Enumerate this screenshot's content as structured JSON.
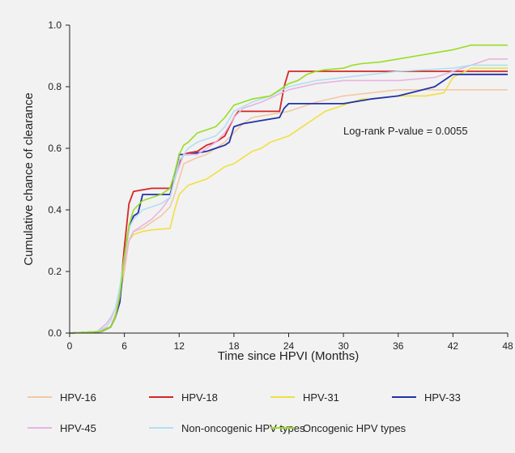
{
  "chart_data": {
    "type": "line",
    "title": "",
    "xlabel": "Time since HPVI (Months)",
    "ylabel": "Cumulative chance of clearance",
    "xlim": [
      0,
      48
    ],
    "ylim": [
      0,
      1.0
    ],
    "x_ticks": [
      "0",
      "6",
      "12",
      "18",
      "24",
      "30",
      "36",
      "42",
      "48"
    ],
    "y_ticks": [
      "0.0",
      "0.2",
      "0.4",
      "0.6",
      "0.8",
      "1.0"
    ],
    "grid": false,
    "legend_position": "bottom",
    "annotation": "Log-rank P-value = 0.0055",
    "series": [
      {
        "name": "HPV-16",
        "color": "#f2c8a2",
        "points": [
          [
            0,
            0
          ],
          [
            3,
            0.005
          ],
          [
            4.5,
            0.02
          ],
          [
            5,
            0.06
          ],
          [
            5.5,
            0.12
          ],
          [
            6,
            0.2
          ],
          [
            6.5,
            0.3
          ],
          [
            7,
            0.33
          ],
          [
            8,
            0.34
          ],
          [
            9,
            0.36
          ],
          [
            10,
            0.38
          ],
          [
            11,
            0.41
          ],
          [
            11.5,
            0.45
          ],
          [
            12,
            0.5
          ],
          [
            12.5,
            0.55
          ],
          [
            14,
            0.57
          ],
          [
            15,
            0.58
          ],
          [
            16,
            0.6
          ],
          [
            17,
            0.62
          ],
          [
            18,
            0.65
          ],
          [
            19,
            0.68
          ],
          [
            20,
            0.7
          ],
          [
            22,
            0.71
          ],
          [
            24,
            0.72
          ],
          [
            25,
            0.73
          ],
          [
            27,
            0.75
          ],
          [
            30,
            0.77
          ],
          [
            33,
            0.78
          ],
          [
            36,
            0.79
          ],
          [
            42,
            0.79
          ],
          [
            48,
            0.79
          ]
        ]
      },
      {
        "name": "HPV-18",
        "color": "#d62626",
        "points": [
          [
            0,
            0
          ],
          [
            3.5,
            0.005
          ],
          [
            4.5,
            0.02
          ],
          [
            5,
            0.05
          ],
          [
            5.5,
            0.12
          ],
          [
            6,
            0.28
          ],
          [
            6.5,
            0.42
          ],
          [
            7,
            0.46
          ],
          [
            8,
            0.465
          ],
          [
            9,
            0.47
          ],
          [
            11,
            0.47
          ],
          [
            11.5,
            0.5
          ],
          [
            12,
            0.55
          ],
          [
            12.5,
            0.58
          ],
          [
            13,
            0.585
          ],
          [
            14,
            0.59
          ],
          [
            15,
            0.61
          ],
          [
            16,
            0.62
          ],
          [
            17,
            0.64
          ],
          [
            18,
            0.7
          ],
          [
            18.5,
            0.72
          ],
          [
            20,
            0.72
          ],
          [
            23,
            0.72
          ],
          [
            23.5,
            0.8
          ],
          [
            24,
            0.85
          ],
          [
            26,
            0.85
          ],
          [
            30,
            0.85
          ],
          [
            36,
            0.85
          ],
          [
            42,
            0.85
          ],
          [
            48,
            0.85
          ]
        ]
      },
      {
        "name": "HPV-31",
        "color": "#f0e040",
        "points": [
          [
            0,
            0
          ],
          [
            3.5,
            0.005
          ],
          [
            4.5,
            0.02
          ],
          [
            5,
            0.05
          ],
          [
            5.5,
            0.12
          ],
          [
            6,
            0.22
          ],
          [
            6.5,
            0.3
          ],
          [
            7,
            0.32
          ],
          [
            8,
            0.33
          ],
          [
            9,
            0.335
          ],
          [
            11,
            0.34
          ],
          [
            11.5,
            0.4
          ],
          [
            12,
            0.45
          ],
          [
            13,
            0.48
          ],
          [
            14,
            0.49
          ],
          [
            15,
            0.5
          ],
          [
            16,
            0.52
          ],
          [
            17,
            0.54
          ],
          [
            18,
            0.55
          ],
          [
            19,
            0.57
          ],
          [
            20,
            0.59
          ],
          [
            21,
            0.6
          ],
          [
            22,
            0.62
          ],
          [
            23,
            0.63
          ],
          [
            24,
            0.64
          ],
          [
            25,
            0.66
          ],
          [
            26,
            0.68
          ],
          [
            27,
            0.7
          ],
          [
            28,
            0.72
          ],
          [
            29,
            0.73
          ],
          [
            30,
            0.74
          ],
          [
            31,
            0.75
          ],
          [
            32,
            0.76
          ],
          [
            33,
            0.76
          ],
          [
            36,
            0.77
          ],
          [
            39,
            0.77
          ],
          [
            41,
            0.78
          ],
          [
            42,
            0.83
          ],
          [
            44,
            0.86
          ],
          [
            48,
            0.86
          ]
        ]
      },
      {
        "name": "HPV-33",
        "color": "#2233aa",
        "points": [
          [
            0,
            0
          ],
          [
            3.5,
            0.005
          ],
          [
            4.5,
            0.02
          ],
          [
            5,
            0.05
          ],
          [
            5.5,
            0.1
          ],
          [
            6,
            0.25
          ],
          [
            6.5,
            0.34
          ],
          [
            7,
            0.38
          ],
          [
            7.5,
            0.39
          ],
          [
            8,
            0.45
          ],
          [
            10,
            0.45
          ],
          [
            11,
            0.45
          ],
          [
            11.5,
            0.5
          ],
          [
            12,
            0.58
          ],
          [
            13,
            0.58
          ],
          [
            15,
            0.59
          ],
          [
            16,
            0.6
          ],
          [
            17,
            0.61
          ],
          [
            17.5,
            0.62
          ],
          [
            18,
            0.67
          ],
          [
            19,
            0.68
          ],
          [
            21,
            0.69
          ],
          [
            23,
            0.7
          ],
          [
            23.5,
            0.73
          ],
          [
            24,
            0.745
          ],
          [
            26,
            0.745
          ],
          [
            30,
            0.745
          ],
          [
            33,
            0.76
          ],
          [
            36,
            0.77
          ],
          [
            38,
            0.785
          ],
          [
            40,
            0.8
          ],
          [
            41,
            0.82
          ],
          [
            42,
            0.84
          ],
          [
            45,
            0.84
          ],
          [
            48,
            0.84
          ]
        ]
      },
      {
        "name": "HPV-45",
        "color": "#e8b4e0",
        "points": [
          [
            0,
            0
          ],
          [
            3,
            0.005
          ],
          [
            4,
            0.03
          ],
          [
            4.5,
            0.05
          ],
          [
            5,
            0.08
          ],
          [
            5.5,
            0.14
          ],
          [
            6,
            0.22
          ],
          [
            6.5,
            0.3
          ],
          [
            7,
            0.33
          ],
          [
            8,
            0.35
          ],
          [
            9,
            0.37
          ],
          [
            10,
            0.4
          ],
          [
            11,
            0.44
          ],
          [
            11.5,
            0.5
          ],
          [
            12,
            0.54
          ],
          [
            12.5,
            0.58
          ],
          [
            14,
            0.58
          ],
          [
            15,
            0.6
          ],
          [
            16,
            0.62
          ],
          [
            17,
            0.65
          ],
          [
            18,
            0.7
          ],
          [
            19,
            0.73
          ],
          [
            21,
            0.75
          ],
          [
            24,
            0.79
          ],
          [
            27,
            0.81
          ],
          [
            30,
            0.82
          ],
          [
            36,
            0.82
          ],
          [
            40,
            0.83
          ],
          [
            42,
            0.85
          ],
          [
            44,
            0.87
          ],
          [
            46,
            0.89
          ],
          [
            48,
            0.89
          ]
        ]
      },
      {
        "name": "Non-oncogenic HPV types",
        "color": "#b0e0f0",
        "points": [
          [
            0,
            0
          ],
          [
            3,
            0.005
          ],
          [
            4,
            0.02
          ],
          [
            4.5,
            0.04
          ],
          [
            5,
            0.08
          ],
          [
            5.5,
            0.15
          ],
          [
            6,
            0.25
          ],
          [
            6.5,
            0.34
          ],
          [
            7,
            0.37
          ],
          [
            8,
            0.4
          ],
          [
            10,
            0.42
          ],
          [
            11,
            0.44
          ],
          [
            11.5,
            0.5
          ],
          [
            12,
            0.56
          ],
          [
            13,
            0.6
          ],
          [
            14,
            0.62
          ],
          [
            16,
            0.64
          ],
          [
            17,
            0.67
          ],
          [
            18,
            0.72
          ],
          [
            20,
            0.75
          ],
          [
            22,
            0.77
          ],
          [
            24,
            0.8
          ],
          [
            27,
            0.82
          ],
          [
            30,
            0.83
          ],
          [
            33,
            0.84
          ],
          [
            36,
            0.85
          ],
          [
            42,
            0.86
          ],
          [
            44,
            0.87
          ],
          [
            48,
            0.87
          ]
        ]
      },
      {
        "name": "Oncogenic HPV types",
        "color": "#99dd22",
        "points": [
          [
            0,
            0
          ],
          [
            3.5,
            0.005
          ],
          [
            4.5,
            0.02
          ],
          [
            5,
            0.05
          ],
          [
            5.5,
            0.12
          ],
          [
            6,
            0.25
          ],
          [
            6.5,
            0.35
          ],
          [
            7,
            0.4
          ],
          [
            8,
            0.43
          ],
          [
            9,
            0.44
          ],
          [
            10,
            0.45
          ],
          [
            11,
            0.47
          ],
          [
            11.5,
            0.52
          ],
          [
            12,
            0.58
          ],
          [
            12.5,
            0.61
          ],
          [
            13,
            0.62
          ],
          [
            14,
            0.65
          ],
          [
            15,
            0.66
          ],
          [
            16,
            0.67
          ],
          [
            17,
            0.7
          ],
          [
            18,
            0.74
          ],
          [
            19,
            0.75
          ],
          [
            20,
            0.76
          ],
          [
            22,
            0.77
          ],
          [
            24,
            0.81
          ],
          [
            25,
            0.82
          ],
          [
            26,
            0.84
          ],
          [
            27,
            0.85
          ],
          [
            28,
            0.855
          ],
          [
            30,
            0.86
          ],
          [
            31,
            0.87
          ],
          [
            32,
            0.875
          ],
          [
            34,
            0.88
          ],
          [
            36,
            0.89
          ],
          [
            38,
            0.9
          ],
          [
            40,
            0.91
          ],
          [
            42,
            0.92
          ],
          [
            44,
            0.935
          ],
          [
            48,
            0.935
          ]
        ]
      }
    ]
  }
}
